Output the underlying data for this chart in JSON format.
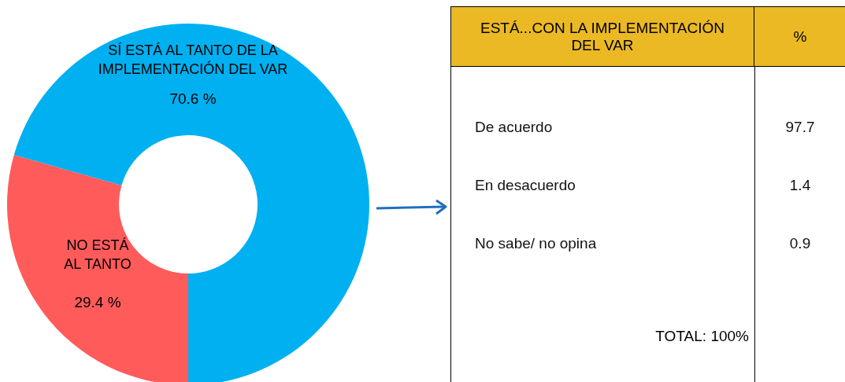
{
  "chart_data": [
    {
      "type": "donut",
      "categories": [
        "SÍ ESTÁ AL TANTO DE LA IMPLEMENTACIÓN DEL VAR",
        "NO ESTÁ AL TANTO"
      ],
      "values": [
        70.6,
        29.4
      ],
      "colors": [
        "#00b0f0",
        "#ff5b5b"
      ],
      "value_labels": [
        "70.6 %",
        "29.4 %"
      ],
      "legend": false
    },
    {
      "type": "other",
      "title": "ESTÁ...CON LA IMPLEMENTACIÓN DEL VAR",
      "ylabel": "%",
      "categories": [
        "De acuerdo",
        "En desacuerdo",
        "No sabe/ no opina"
      ],
      "values": [
        97.7,
        1.4,
        0.9
      ],
      "data_labels": true,
      "annotations": [
        "TOTAL: 100%"
      ]
    }
  ]
}
